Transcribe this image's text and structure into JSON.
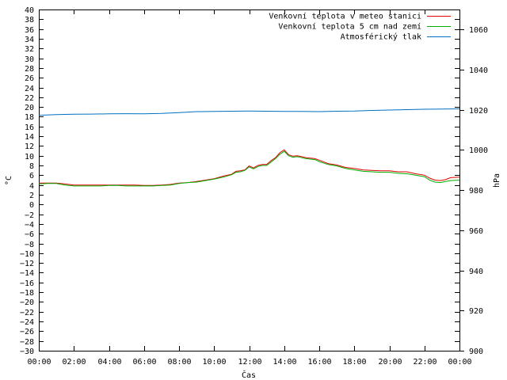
{
  "chart_data": {
    "type": "line",
    "xlabel": "Čas",
    "ylabel": "°C",
    "y2label": "hPa",
    "x_ticks": [
      "00:00",
      "02:00",
      "04:00",
      "06:00",
      "08:00",
      "10:00",
      "12:00",
      "14:00",
      "16:00",
      "18:00",
      "20:00",
      "22:00",
      "00:00"
    ],
    "xlim": [
      0,
      24
    ],
    "ylim": [
      -30,
      40
    ],
    "y_tick_step": 2,
    "y2lim": [
      900,
      1070
    ],
    "y2_ticks": [
      900,
      920,
      940,
      960,
      980,
      1000,
      1020,
      1040,
      1060
    ],
    "grid": false,
    "legend_position": "top-right",
    "series": [
      {
        "name": "Venkovní teplota v meteo stanici",
        "axis": "left",
        "color": "#e00000",
        "x": [
          0,
          0.5,
          1,
          1.5,
          2,
          2.5,
          3,
          3.5,
          4,
          4.5,
          5,
          5.5,
          6,
          6.5,
          7,
          7.5,
          8,
          8.5,
          9,
          9.5,
          10,
          10.5,
          11,
          11.25,
          11.5,
          11.75,
          12,
          12.25,
          12.5,
          12.75,
          13,
          13.25,
          13.5,
          13.75,
          14,
          14.25,
          14.5,
          14.75,
          15,
          15.25,
          15.5,
          15.75,
          16,
          16.5,
          17,
          17.5,
          18,
          18.5,
          19,
          19.5,
          20,
          20.5,
          21,
          21.5,
          22,
          22.3,
          22.6,
          22.9,
          23.2,
          23.5,
          24
        ],
        "y": [
          4.4,
          4.4,
          4.4,
          4.2,
          4.0,
          4.0,
          4.0,
          4.0,
          4.0,
          4.0,
          4.0,
          4.0,
          3.9,
          3.9,
          4.0,
          4.1,
          4.4,
          4.5,
          4.7,
          5.0,
          5.3,
          5.8,
          6.2,
          6.8,
          6.9,
          7.1,
          7.9,
          7.5,
          8.0,
          8.2,
          8.2,
          9.0,
          9.6,
          10.6,
          11.2,
          10.2,
          9.9,
          10.0,
          9.8,
          9.6,
          9.5,
          9.4,
          9.1,
          8.4,
          8.1,
          7.6,
          7.4,
          7.1,
          7.0,
          6.9,
          6.9,
          6.7,
          6.7,
          6.3,
          6.0,
          5.4,
          5.0,
          4.9,
          5.1,
          5.5,
          5.6
        ]
      },
      {
        "name": "Venkovní teplota 5 cm nad zemí",
        "axis": "left",
        "color": "#00b000",
        "x": [
          0,
          0.5,
          1,
          1.5,
          2,
          2.5,
          3,
          3.5,
          4,
          4.5,
          5,
          5.5,
          6,
          6.5,
          7,
          7.5,
          8,
          8.5,
          9,
          9.5,
          10,
          10.5,
          11,
          11.25,
          11.5,
          11.75,
          12,
          12.25,
          12.5,
          12.75,
          13,
          13.25,
          13.5,
          13.75,
          14,
          14.25,
          14.5,
          14.75,
          15,
          15.25,
          15.5,
          15.75,
          16,
          16.5,
          17,
          17.5,
          18,
          18.5,
          19,
          19.5,
          20,
          20.5,
          21,
          21.5,
          22,
          22.3,
          22.6,
          22.9,
          23.2,
          23.5,
          24
        ],
        "y": [
          4.2,
          4.3,
          4.3,
          4.0,
          3.8,
          3.8,
          3.8,
          3.8,
          3.9,
          3.9,
          3.8,
          3.8,
          3.8,
          3.8,
          3.9,
          4.0,
          4.3,
          4.5,
          4.6,
          4.9,
          5.2,
          5.6,
          6.1,
          6.6,
          6.7,
          7.0,
          7.7,
          7.3,
          7.8,
          8.0,
          8.0,
          8.7,
          9.4,
          10.3,
          10.9,
          10.0,
          9.7,
          9.8,
          9.6,
          9.4,
          9.3,
          9.2,
          8.8,
          8.2,
          7.9,
          7.4,
          7.1,
          6.8,
          6.7,
          6.6,
          6.6,
          6.4,
          6.3,
          6.0,
          5.7,
          5.0,
          4.6,
          4.5,
          4.7,
          4.9,
          5.0
        ]
      },
      {
        "name": "Atmosférický tlak",
        "axis": "right",
        "color": "#0070c0",
        "x": [
          0,
          1,
          2,
          3,
          4,
          5,
          6,
          7,
          8,
          8.5,
          9,
          10,
          11,
          12,
          13,
          14,
          15,
          16,
          17,
          18,
          19,
          20,
          21,
          22,
          23,
          24
        ],
        "y": [
          1017.3,
          1017.6,
          1017.8,
          1017.9,
          1018.0,
          1018.1,
          1018.0,
          1018.2,
          1018.6,
          1018.9,
          1019.1,
          1019.2,
          1019.3,
          1019.4,
          1019.3,
          1019.2,
          1019.2,
          1019.1,
          1019.3,
          1019.4,
          1019.7,
          1019.9,
          1020.1,
          1020.3,
          1020.4,
          1020.5
        ]
      }
    ]
  }
}
